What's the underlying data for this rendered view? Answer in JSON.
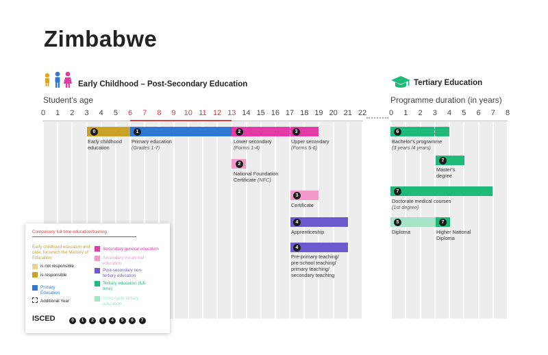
{
  "title": "Zimbabwe",
  "section_left": "Early Childhood – Post-Secondary Education",
  "section_right": "Tertiary Education",
  "axis_left_title": "Student's age",
  "axis_right_title": "Programme duration (in years)",
  "ages": [
    "0",
    "1",
    "2",
    "3",
    "4",
    "5",
    "6",
    "7",
    "8",
    "9",
    "10",
    "11",
    "12",
    "13",
    "14",
    "15",
    "16",
    "17",
    "18",
    "19",
    "20",
    "21",
    "22"
  ],
  "years": [
    "0",
    "1",
    "2",
    "3",
    "4",
    "5",
    "6",
    "7",
    "8"
  ],
  "colors": {
    "early_childhood": "#c9a227",
    "primary": "#2f78d4",
    "secondary_general": "#e23ba6",
    "secondary_vocational": "#f39acb",
    "post_secondary": "#6a5acd",
    "tertiary": "#1fba7a",
    "short_cycle": "#a6e3c9",
    "compulsory": "#e53935"
  },
  "programmes": {
    "early": {
      "isced": "0",
      "label": "Early childhood education"
    },
    "primary": {
      "isced": "1",
      "label": "Primary education",
      "sub": "(Grades 1-7)"
    },
    "lower_secondary": {
      "isced": "2",
      "label": "Lower secondary",
      "sub": "(Forms 1-4)"
    },
    "upper_secondary": {
      "isced": "3",
      "label": "Upper secondary",
      "sub": "(Forms 5-6)"
    },
    "nfc": {
      "isced": "2",
      "label": "National Foundation Certificate",
      "sub": "(NFC)"
    },
    "certificate": {
      "isced": "3",
      "label": "Certificate"
    },
    "apprenticeship": {
      "isced": "4",
      "label": "Apprenticeship"
    },
    "teaching": {
      "isced": "4",
      "label": "Pre-primary teaching/ pre-school teaching/ primary teaching/ secondary teaching"
    },
    "bachelor": {
      "isced": "6",
      "label": "Bachelor's programme",
      "sub": "(3 years /4 years)"
    },
    "masters": {
      "isced": "7",
      "label": "Master's degree"
    },
    "doctorate": {
      "isced": "7",
      "label": "Doctorate medical courses",
      "sub": "(1st degree)"
    },
    "diploma": {
      "isced": "5",
      "label": "Diploma"
    },
    "hnd": {
      "isced": "7",
      "label": "Higher National Diploma"
    }
  },
  "legend": {
    "compulsory": "Compulsory full-time education/training",
    "early_title": "Early childhood education and care, for which the Ministry of Education:",
    "not_resp": "is not responsible",
    "is_resp": "is responsible",
    "primary": "Primary Education",
    "additional": "Additional Year",
    "sec_general": "Secondary general education",
    "sec_vocational": "Secondary vocational education",
    "post_secondary": "Post-secondary non-tertiary education",
    "tertiary": "Tertiary education (full-time)",
    "short_cycle": "Short-cycle tertiary education",
    "isced_label": "ISCED",
    "isced_levels": [
      "0",
      "1",
      "2",
      "3",
      "4",
      "5",
      "6",
      "7"
    ]
  }
}
